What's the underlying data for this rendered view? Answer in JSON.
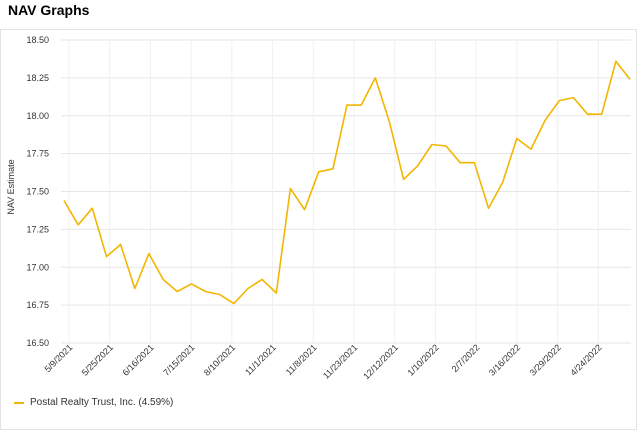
{
  "page": {
    "title": "NAV Graphs"
  },
  "chart_data": {
    "type": "line",
    "ylabel": "NAV Estimate",
    "xlabel": "",
    "ylim": [
      16.5,
      18.5
    ],
    "yticks": [
      "18.50",
      "18.25",
      "18.00",
      "17.75",
      "17.50",
      "17.25",
      "17.00",
      "16.75",
      "16.50"
    ],
    "xtick_labels": [
      "5/9/2021",
      "5/25/2021",
      "6/16/2021",
      "7/15/2021",
      "8/10/2021",
      "11/1/2021",
      "11/8/2021",
      "11/23/2021",
      "12/12/2021",
      "1/10/2022",
      "2/7/2022",
      "3/16/2022",
      "3/29/2022",
      "4/24/2022"
    ],
    "grid": true,
    "legend_position": "bottom-left",
    "series": [
      {
        "name": "Postal Realty Trust, Inc. (4.59%)",
        "color": "#f2b600",
        "values": [
          17.44,
          17.28,
          17.39,
          17.07,
          17.15,
          16.86,
          17.09,
          16.92,
          16.84,
          16.89,
          16.84,
          16.82,
          16.76,
          16.86,
          16.92,
          16.83,
          17.52,
          17.38,
          17.63,
          17.65,
          18.07,
          18.07,
          18.25,
          17.96,
          17.58,
          17.67,
          17.81,
          17.8,
          17.69,
          17.69,
          17.39,
          17.56,
          17.85,
          17.78,
          17.97,
          18.1,
          18.12,
          18.01,
          18.01,
          18.36,
          18.24
        ]
      }
    ]
  }
}
